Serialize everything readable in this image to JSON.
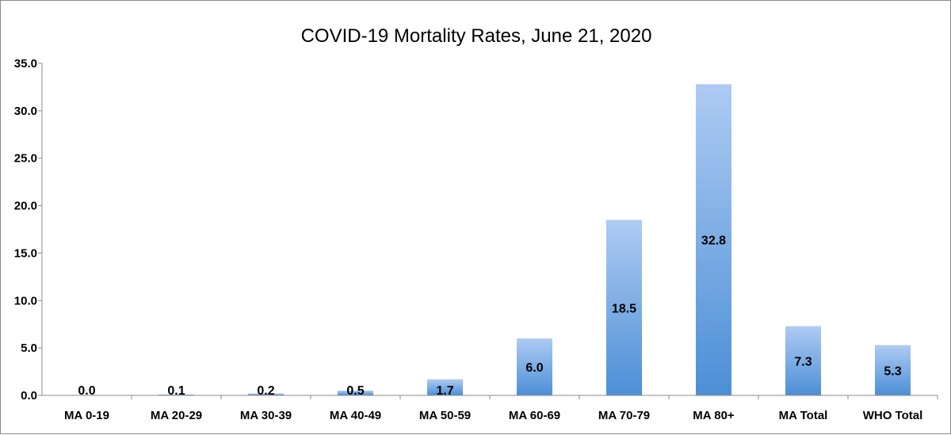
{
  "chart_data": {
    "type": "bar",
    "title": "COVID-19 Mortality Rates, June 21, 2020",
    "categories": [
      "MA 0-19",
      "MA 20-29",
      "MA 30-39",
      "MA 40-49",
      "MA 50-59",
      "MA 60-69",
      "MA 70-79",
      "MA 80+",
      "MA Total",
      "WHO Total"
    ],
    "values": [
      0.0,
      0.1,
      0.2,
      0.5,
      1.7,
      6.0,
      18.5,
      32.8,
      7.3,
      5.3
    ],
    "value_labels": [
      "0.0",
      "0.1",
      "0.2",
      "0.5",
      "1.7",
      "6.0",
      "18.5",
      "32.8",
      "7.3",
      "5.3"
    ],
    "ylim": [
      0,
      35
    ],
    "yticks": [
      "0.0",
      "5.0",
      "10.0",
      "15.0",
      "20.0",
      "25.0",
      "30.0",
      "35.0"
    ],
    "grid": false,
    "legend": "none",
    "colors": {
      "bar_top": "#aecbf3",
      "bar_bottom": "#4c8fd6",
      "axis": "#8a8a8a"
    }
  }
}
